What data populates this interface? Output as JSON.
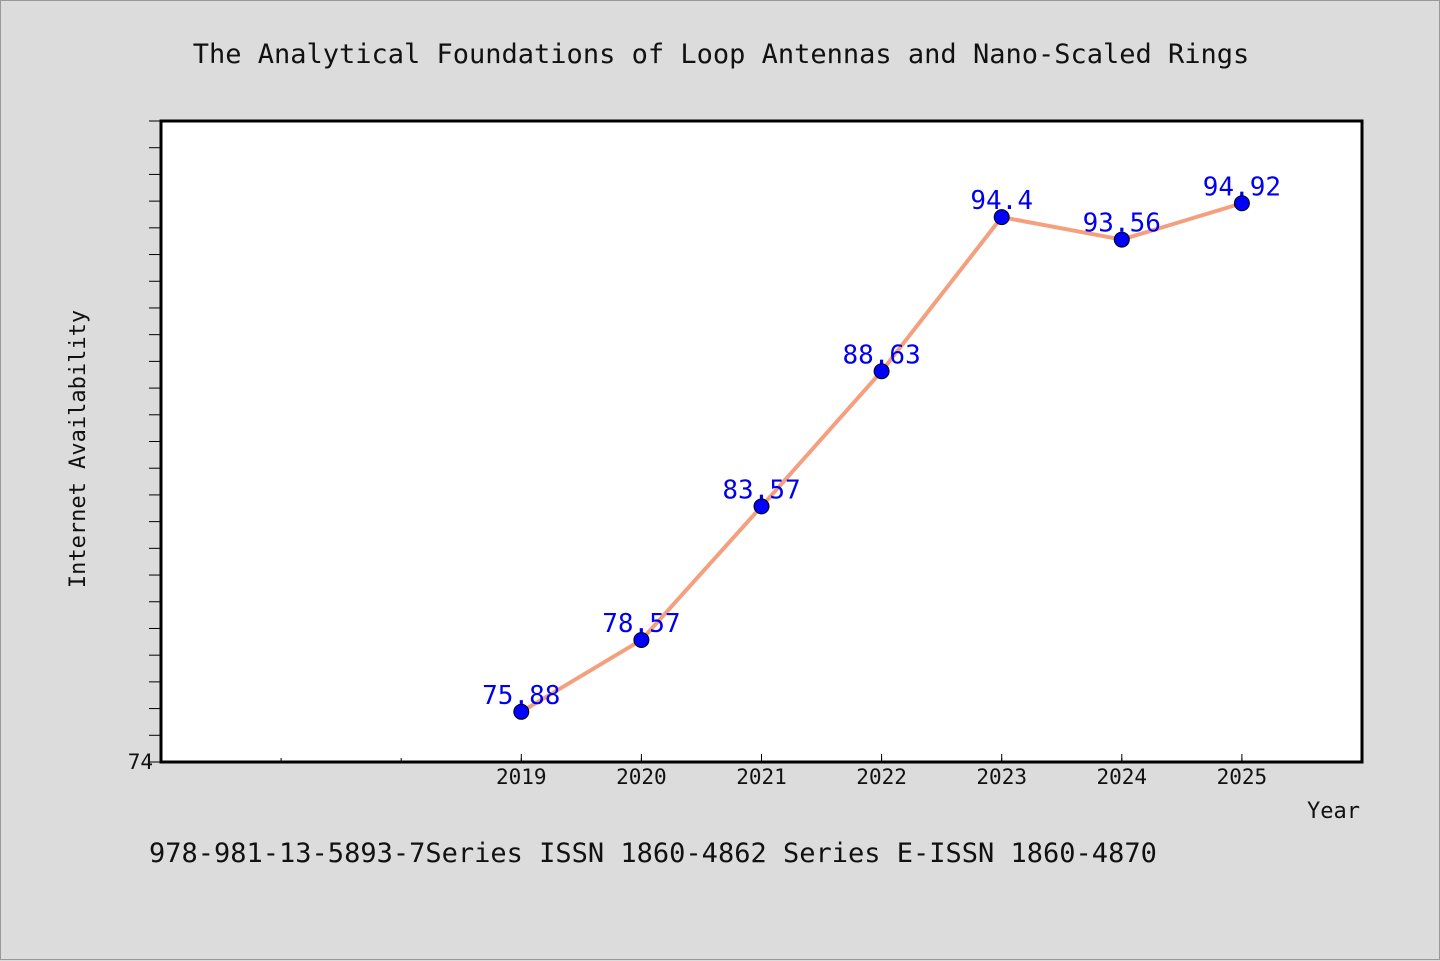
{
  "chart_data": {
    "type": "line",
    "title": "The Analytical Foundations of Loop Antennas and Nano-Scaled Rings",
    "xlabel": "Year",
    "ylabel": "Internet Availability",
    "x": [
      "2019",
      "2020",
      "2021",
      "2022",
      "2023",
      "2024",
      "2025"
    ],
    "series": [
      {
        "values": [
          75.88,
          78.57,
          83.57,
          88.63,
          94.4,
          93.56,
          94.92
        ],
        "labels": [
          "75.88",
          "78.57",
          "83.57",
          "88.63",
          "94.4",
          "93.56",
          "94.92"
        ]
      }
    ],
    "y_tick_labels": [
      "74"
    ],
    "ylim": [
      74,
      98
    ],
    "x_category_range": [
      2016,
      2026
    ],
    "grid": false,
    "line_color": "#f4a07e",
    "marker_color": "#0000ff",
    "label_color": "#0000ee"
  },
  "footer": "978-981-13-5893-7Series ISSN 1860-4862 Series E-ISSN 1860-4870"
}
